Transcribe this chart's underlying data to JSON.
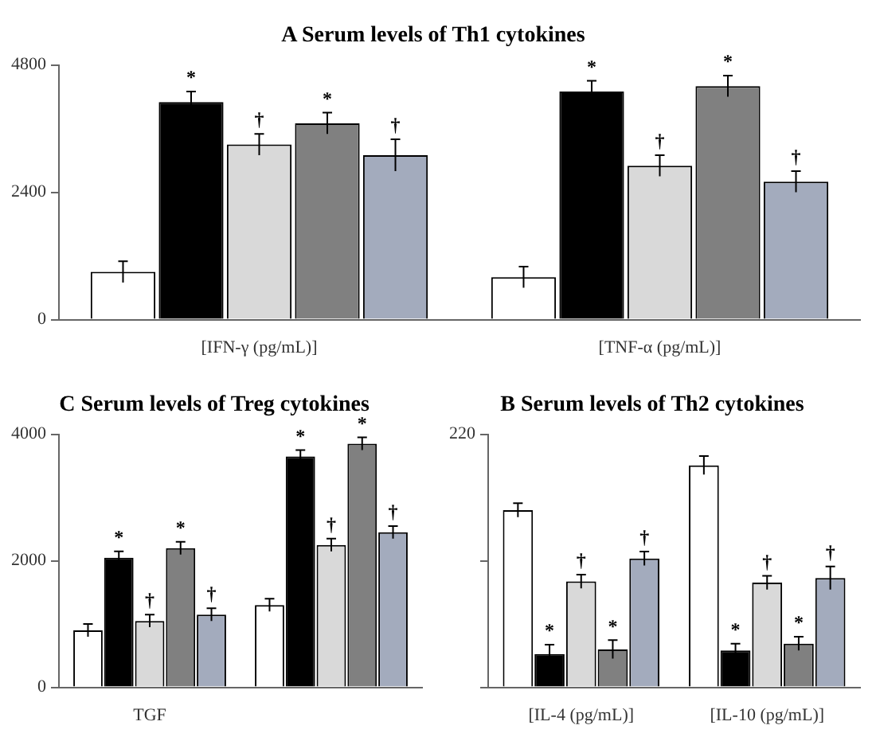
{
  "chart_data": [
    {
      "type": "bar",
      "title": "A Serum levels of Th1 cytokines",
      "categories": [
        "[IFN-γ (pg/mL)]",
        "[TNF-α (pg/mL)]"
      ],
      "ylim": [
        0,
        4800
      ],
      "yticks": [
        0,
        2400,
        4800
      ],
      "grid": false,
      "legend": false,
      "series": [
        {
          "color": "#ffffff",
          "values": [
            900,
            800
          ],
          "errors": [
            200,
            200
          ],
          "value_labels": [
            null,
            null
          ]
        },
        {
          "color": "#000000",
          "values": [
            4100,
            4300
          ],
          "errors": [
            200,
            200
          ],
          "value_labels": [
            "*",
            "*"
          ]
        },
        {
          "color": "#d9d9d9",
          "values": [
            3300,
            2900
          ],
          "errors": [
            200,
            200
          ],
          "value_labels": [
            "†",
            "†"
          ]
        },
        {
          "color": "#808080",
          "values": [
            3700,
            4400
          ],
          "errors": [
            200,
            200
          ],
          "value_labels": [
            "*",
            "*"
          ]
        },
        {
          "color": "#a3abbd",
          "values": [
            3100,
            2600
          ],
          "errors": [
            300,
            200
          ],
          "value_labels": [
            "†",
            "†"
          ]
        }
      ]
    },
    {
      "type": "bar",
      "title": "C Serum levels of Treg cytokines",
      "categories": [
        "TGF",
        null
      ],
      "ylim": [
        0,
        4000
      ],
      "yticks": [
        0,
        2000,
        4000
      ],
      "grid": false,
      "legend": false,
      "series": [
        {
          "color": "#ffffff",
          "values": [
            900,
            1300
          ],
          "errors": [
            100,
            100
          ],
          "value_labels": [
            null,
            null
          ]
        },
        {
          "color": "#000000",
          "values": [
            2050,
            3650
          ],
          "errors": [
            100,
            100
          ],
          "value_labels": [
            "*",
            "*"
          ]
        },
        {
          "color": "#d9d9d9",
          "values": [
            1050,
            2250
          ],
          "errors": [
            100,
            100
          ],
          "value_labels": [
            "†",
            "†"
          ]
        },
        {
          "color": "#808080",
          "values": [
            2200,
            3850
          ],
          "errors": [
            100,
            100
          ],
          "value_labels": [
            "*",
            "*"
          ]
        },
        {
          "color": "#a3abbd",
          "values": [
            1150,
            2450
          ],
          "errors": [
            100,
            100
          ],
          "value_labels": [
            "†",
            "†"
          ]
        }
      ]
    },
    {
      "type": "bar",
      "title": "B Serum levels of Th2 cytokines",
      "categories": [
        "[IL-4 (pg/mL)]",
        "[IL-10 (pg/mL)]"
      ],
      "ylim": [
        0,
        220
      ],
      "yticks": [
        {
          "value": 0,
          "label": null
        },
        {
          "value": 110,
          "label": null
        },
        220
      ],
      "grid": false,
      "legend": false,
      "series": [
        {
          "color": "#ffffff",
          "values": [
            154,
            193
          ],
          "errors": [
            6,
            8
          ],
          "value_labels": [
            null,
            null
          ]
        },
        {
          "color": "#000000",
          "values": [
            29,
            32
          ],
          "errors": [
            8,
            6
          ],
          "value_labels": [
            "*",
            "*"
          ]
        },
        {
          "color": "#d9d9d9",
          "values": [
            92,
            91
          ],
          "errors": [
            6,
            6
          ],
          "value_labels": [
            "†",
            "†"
          ]
        },
        {
          "color": "#808080",
          "values": [
            33,
            38
          ],
          "errors": [
            8,
            6
          ],
          "value_labels": [
            "*",
            "*"
          ]
        },
        {
          "color": "#a3abbd",
          "values": [
            112,
            95
          ],
          "errors": [
            6,
            10
          ],
          "value_labels": [
            "†",
            "†"
          ]
        }
      ]
    }
  ]
}
